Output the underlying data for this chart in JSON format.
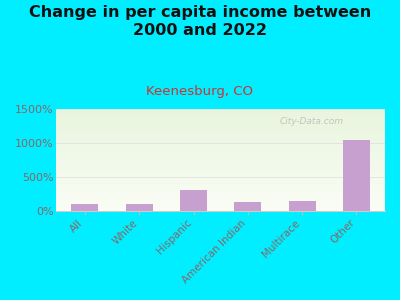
{
  "title": "Change in per capita income between\n2000 and 2022",
  "subtitle": "Keenesburg, CO",
  "categories": [
    "All",
    "White",
    "Hispanic",
    "American Indian",
    "Multirace",
    "Other"
  ],
  "values": [
    100,
    100,
    300,
    130,
    150,
    1050
  ],
  "bar_color": "#c8a0d0",
  "background_outer": "#00eeff",
  "title_color": "#111111",
  "subtitle_color": "#cc3333",
  "tick_label_color": "#886666",
  "watermark": "City-Data.com",
  "ylim": [
    0,
    1500
  ],
  "yticks": [
    0,
    500,
    1000,
    1500
  ],
  "ytick_labels": [
    "0%",
    "500%",
    "1000%",
    "1500%"
  ],
  "title_fontsize": 11.5,
  "subtitle_fontsize": 9.5
}
